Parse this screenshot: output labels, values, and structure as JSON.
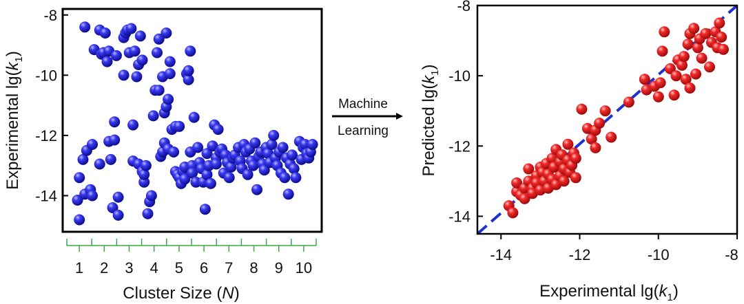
{
  "chart_data": [
    {
      "type": "scatter",
      "title": "",
      "xlabel": "Cluster Size (N)",
      "xlabel_parts": {
        "pre": "Cluster Size (",
        "italic": "N",
        "post": ")"
      },
      "ylabel": "Experimental lg(k1)",
      "ylabel_parts": {
        "pre": "Experimental lg(",
        "italic": "k",
        "sub": "1",
        "post": ")"
      },
      "ylim": [
        -15.2,
        -7.8
      ],
      "yticks": [
        -8,
        -10,
        -12,
        -14
      ],
      "cluster_ticks": [
        "1",
        "2",
        "3",
        "4",
        "5",
        "6",
        "7",
        "8",
        "9",
        "10"
      ],
      "marker_color": "#2a2ad6",
      "bracket_color": "#3aa845",
      "points": [
        [
          0.8,
          -14.15
        ],
        [
          0.9,
          -13.4
        ],
        [
          0.9,
          -14.8
        ],
        [
          1.2,
          -8.4
        ],
        [
          1.1,
          -12.8
        ],
        [
          1.2,
          -13.95
        ],
        [
          1.3,
          -12.5
        ],
        [
          1.5,
          -13.8
        ],
        [
          1.6,
          -12.3
        ],
        [
          1.6,
          -14.0
        ],
        [
          1.7,
          -9.15
        ],
        [
          2.0,
          -8.5
        ],
        [
          2.1,
          -9.3
        ],
        [
          2.0,
          -12.95
        ],
        [
          2.2,
          -9.25
        ],
        [
          2.3,
          -8.6
        ],
        [
          2.4,
          -9.55
        ],
        [
          2.5,
          -9.2
        ],
        [
          2.5,
          -12.2
        ],
        [
          2.6,
          -12.8
        ],
        [
          2.7,
          -14.4
        ],
        [
          2.8,
          -11.55
        ],
        [
          2.8,
          -12.15
        ],
        [
          2.9,
          -9.35
        ],
        [
          3.0,
          -14.05
        ],
        [
          3.0,
          -14.65
        ],
        [
          3.3,
          -8.75
        ],
        [
          3.3,
          -10.0
        ],
        [
          3.4,
          -8.6
        ],
        [
          3.5,
          -8.5
        ],
        [
          3.6,
          -9.25
        ],
        [
          3.7,
          -8.45
        ],
        [
          3.8,
          -11.65
        ],
        [
          3.8,
          -12.85
        ],
        [
          3.9,
          -9.2
        ],
        [
          4.0,
          -10.05
        ],
        [
          4.1,
          -9.65
        ],
        [
          4.1,
          -12.95
        ],
        [
          4.2,
          -8.7
        ],
        [
          4.3,
          -13.2
        ],
        [
          4.3,
          -9.5
        ],
        [
          4.4,
          -13.55
        ],
        [
          4.4,
          -13.3
        ],
        [
          4.5,
          -13.0
        ],
        [
          4.6,
          -14.6
        ],
        [
          4.7,
          -14.2
        ],
        [
          4.8,
          -14.0
        ],
        [
          4.9,
          -11.35
        ],
        [
          5.0,
          -10.5
        ],
        [
          5.1,
          -9.25
        ],
        [
          5.2,
          -8.8
        ],
        [
          5.2,
          -10.5
        ],
        [
          5.3,
          -12.7
        ],
        [
          5.4,
          -10.05
        ],
        [
          5.4,
          -12.55
        ],
        [
          5.5,
          -12.25
        ],
        [
          5.5,
          -11.25
        ],
        [
          5.6,
          -8.6
        ],
        [
          5.6,
          -11.05
        ],
        [
          5.7,
          -12.45
        ],
        [
          5.7,
          -10.8
        ],
        [
          5.8,
          -9.95
        ],
        [
          5.8,
          -9.55
        ],
        [
          5.9,
          -11.8
        ],
        [
          6.0,
          -12.55
        ],
        [
          6.1,
          -11.7
        ],
        [
          6.1,
          -13.2
        ],
        [
          6.2,
          -13.3
        ],
        [
          6.3,
          -11.7
        ],
        [
          6.3,
          -13.4
        ],
        [
          6.4,
          -13.6
        ],
        [
          6.5,
          -13.2
        ],
        [
          6.6,
          -13.45
        ],
        [
          6.6,
          -13.05
        ],
        [
          6.7,
          -9.95
        ],
        [
          6.8,
          -10.15
        ],
        [
          6.8,
          -9.85
        ],
        [
          6.9,
          -9.2
        ],
        [
          6.9,
          -12.55
        ],
        [
          7.0,
          -13.0
        ],
        [
          7.0,
          -13.25
        ],
        [
          7.1,
          -11.4
        ],
        [
          7.2,
          -13.55
        ],
        [
          7.3,
          -12.4
        ],
        [
          7.4,
          -12.9
        ],
        [
          7.5,
          -13.1
        ],
        [
          7.6,
          -13.55
        ],
        [
          7.7,
          -14.45
        ],
        [
          7.8,
          -12.6
        ],
        [
          7.8,
          -13.3
        ],
        [
          7.9,
          -13.0
        ],
        [
          8.0,
          -13.6
        ],
        [
          8.1,
          -12.35
        ],
        [
          8.2,
          -11.65
        ],
        [
          8.3,
          -12.75
        ],
        [
          8.3,
          -12.95
        ],
        [
          8.4,
          -11.8
        ],
        [
          8.5,
          -12.55
        ],
        [
          8.6,
          -12.45
        ],
        [
          8.7,
          -13.25
        ],
        [
          8.8,
          -12.65
        ],
        [
          8.9,
          -12.9
        ],
        [
          9.0,
          -13.4
        ],
        [
          9.1,
          -13.05
        ],
        [
          9.2,
          -12.75
        ],
        [
          9.3,
          -12.65
        ],
        [
          9.5,
          -12.4
        ],
        [
          9.6,
          -12.85
        ],
        [
          9.7,
          -13.1
        ],
        [
          9.8,
          -12.3
        ],
        [
          9.9,
          -12.55
        ],
        [
          10.0,
          -13.3
        ],
        [
          10.1,
          -12.45
        ],
        [
          10.2,
          -12.85
        ],
        [
          10.3,
          -13.0
        ],
        [
          10.4,
          -12.25
        ],
        [
          10.5,
          -13.8
        ],
        [
          10.6,
          -12.7
        ],
        [
          10.7,
          -12.55
        ],
        [
          10.8,
          -12.95
        ],
        [
          10.9,
          -13.15
        ],
        [
          11.0,
          -12.4
        ],
        [
          11.1,
          -12.6
        ],
        [
          11.2,
          -12.9
        ],
        [
          11.3,
          -12.3
        ],
        [
          11.4,
          -12.0
        ],
        [
          11.5,
          -12.75
        ],
        [
          11.6,
          -13.0
        ],
        [
          11.7,
          -12.55
        ],
        [
          11.8,
          -13.25
        ],
        [
          11.9,
          -12.4
        ],
        [
          12.0,
          -13.4
        ],
        [
          12.1,
          -12.75
        ],
        [
          12.2,
          -13.95
        ],
        [
          12.3,
          -12.95
        ],
        [
          12.4,
          -12.65
        ],
        [
          12.5,
          -13.1
        ],
        [
          12.6,
          -13.4
        ],
        [
          12.8,
          -12.2
        ],
        [
          12.9,
          -12.8
        ],
        [
          13.0,
          -12.4
        ],
        [
          13.1,
          -12.3
        ],
        [
          13.2,
          -12.6
        ],
        [
          13.3,
          -12.75
        ],
        [
          13.4,
          -12.55
        ],
        [
          13.5,
          -12.3
        ]
      ]
    },
    {
      "type": "scatter",
      "title": "",
      "xlabel": "Experimental lg(k1)",
      "xlabel_parts": {
        "pre": "Experimental lg(",
        "italic": "k",
        "sub": "1",
        "post": ")"
      },
      "ylabel": "Predicted lg(k1)",
      "ylabel_parts": {
        "pre": "Predicted lg(",
        "italic": "k",
        "sub": "1",
        "post": ")"
      },
      "xlim": [
        -14.6,
        -8.0
      ],
      "ylim": [
        -14.5,
        -8.0
      ],
      "xticks": [
        -14,
        -12,
        -10,
        -8
      ],
      "yticks": [
        -8,
        -10,
        -12,
        -14
      ],
      "marker_color": "#e41c1c",
      "fit_line": {
        "style": "dashed",
        "color": "#1f2fd0",
        "from": [
          -14.6,
          -14.5
        ],
        "to": [
          -8.0,
          -8.0
        ]
      },
      "points": [
        [
          -13.8,
          -13.7
        ],
        [
          -13.7,
          -13.9
        ],
        [
          -13.6,
          -13.3
        ],
        [
          -13.6,
          -13.05
        ],
        [
          -13.5,
          -13.4
        ],
        [
          -13.4,
          -13.2
        ],
        [
          -13.4,
          -13.5
        ],
        [
          -13.3,
          -13.0
        ],
        [
          -13.3,
          -12.65
        ],
        [
          -13.2,
          -13.2
        ],
        [
          -13.2,
          -13.35
        ],
        [
          -13.1,
          -12.85
        ],
        [
          -13.1,
          -13.05
        ],
        [
          -13.0,
          -12.6
        ],
        [
          -13.0,
          -13.25
        ],
        [
          -12.95,
          -12.75
        ],
        [
          -12.9,
          -13.0
        ],
        [
          -12.85,
          -12.5
        ],
        [
          -12.8,
          -13.2
        ],
        [
          -12.8,
          -12.8
        ],
        [
          -12.7,
          -12.35
        ],
        [
          -12.7,
          -12.95
        ],
        [
          -12.65,
          -12.6
        ],
        [
          -12.6,
          -12.1
        ],
        [
          -12.6,
          -13.1
        ],
        [
          -12.5,
          -12.45
        ],
        [
          -12.5,
          -12.85
        ],
        [
          -12.45,
          -12.25
        ],
        [
          -12.4,
          -12.65
        ],
        [
          -12.4,
          -13.0
        ],
        [
          -12.3,
          -12.4
        ],
        [
          -12.3,
          -11.95
        ],
        [
          -12.25,
          -12.75
        ],
        [
          -12.2,
          -12.55
        ],
        [
          -12.15,
          -12.2
        ],
        [
          -12.1,
          -12.9
        ],
        [
          -12.1,
          -12.35
        ],
        [
          -11.95,
          -10.95
        ],
        [
          -11.8,
          -11.5
        ],
        [
          -11.7,
          -11.8
        ],
        [
          -11.6,
          -11.55
        ],
        [
          -11.6,
          -12.05
        ],
        [
          -11.5,
          -11.35
        ],
        [
          -11.35,
          -11.0
        ],
        [
          -11.2,
          -11.75
        ],
        [
          -10.75,
          -10.75
        ],
        [
          -10.35,
          -10.1
        ],
        [
          -10.3,
          -10.4
        ],
        [
          -10.1,
          -10.3
        ],
        [
          -10.0,
          -10.6
        ],
        [
          -9.95,
          -10.2
        ],
        [
          -9.9,
          -9.3
        ],
        [
          -9.85,
          -8.75
        ],
        [
          -9.7,
          -9.8
        ],
        [
          -9.6,
          -10.55
        ],
        [
          -9.55,
          -10.0
        ],
        [
          -9.5,
          -9.55
        ],
        [
          -9.4,
          -9.7
        ],
        [
          -9.35,
          -9.45
        ],
        [
          -9.3,
          -10.1
        ],
        [
          -9.25,
          -9.1
        ],
        [
          -9.2,
          -8.8
        ],
        [
          -9.2,
          -10.35
        ],
        [
          -9.1,
          -8.65
        ],
        [
          -9.05,
          -9.95
        ],
        [
          -9.0,
          -9.2
        ],
        [
          -8.95,
          -8.95
        ],
        [
          -8.9,
          -9.5
        ],
        [
          -8.8,
          -8.8
        ],
        [
          -8.7,
          -9.75
        ],
        [
          -8.65,
          -9.05
        ],
        [
          -8.55,
          -8.75
        ],
        [
          -8.5,
          -9.2
        ],
        [
          -8.45,
          -8.5
        ],
        [
          -8.4,
          -8.9
        ],
        [
          -8.35,
          -9.25
        ]
      ]
    }
  ],
  "arrow": {
    "label_top": "Machine",
    "label_bottom": "Learning"
  }
}
